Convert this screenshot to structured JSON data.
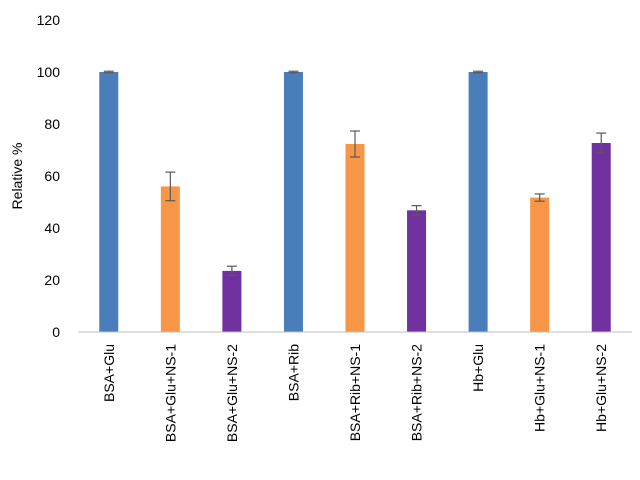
{
  "chart_data": {
    "type": "bar",
    "title": "",
    "xlabel": "",
    "ylabel": "Relative %",
    "ylim": [
      0,
      120
    ],
    "yticks": [
      0,
      20,
      40,
      60,
      80,
      100,
      120
    ],
    "grid": false,
    "legend": "none",
    "categories": [
      "BSA+Glu",
      "BSA+Glu+NS-1",
      "BSA+Glu+NS-2",
      "BSA+Rib",
      "BSA+Rib+NS-1",
      "BSA+Rib+NS-2",
      "Hb+Glu",
      "Hb+Glu+NS-1",
      "Hb+Glu+NS-2"
    ],
    "values": [
      100,
      56,
      23.5,
      100,
      72.3,
      46.8,
      100,
      51.7,
      72.7
    ],
    "errors": [
      0.3,
      5.5,
      1.8,
      0.3,
      5.0,
      1.8,
      0.3,
      1.4,
      3.8
    ],
    "bar_colors": [
      "#4a7ebb",
      "#f79646",
      "#7030a0",
      "#4a7ebb",
      "#f79646",
      "#7030a0",
      "#4a7ebb",
      "#f79646",
      "#7030a0"
    ]
  }
}
